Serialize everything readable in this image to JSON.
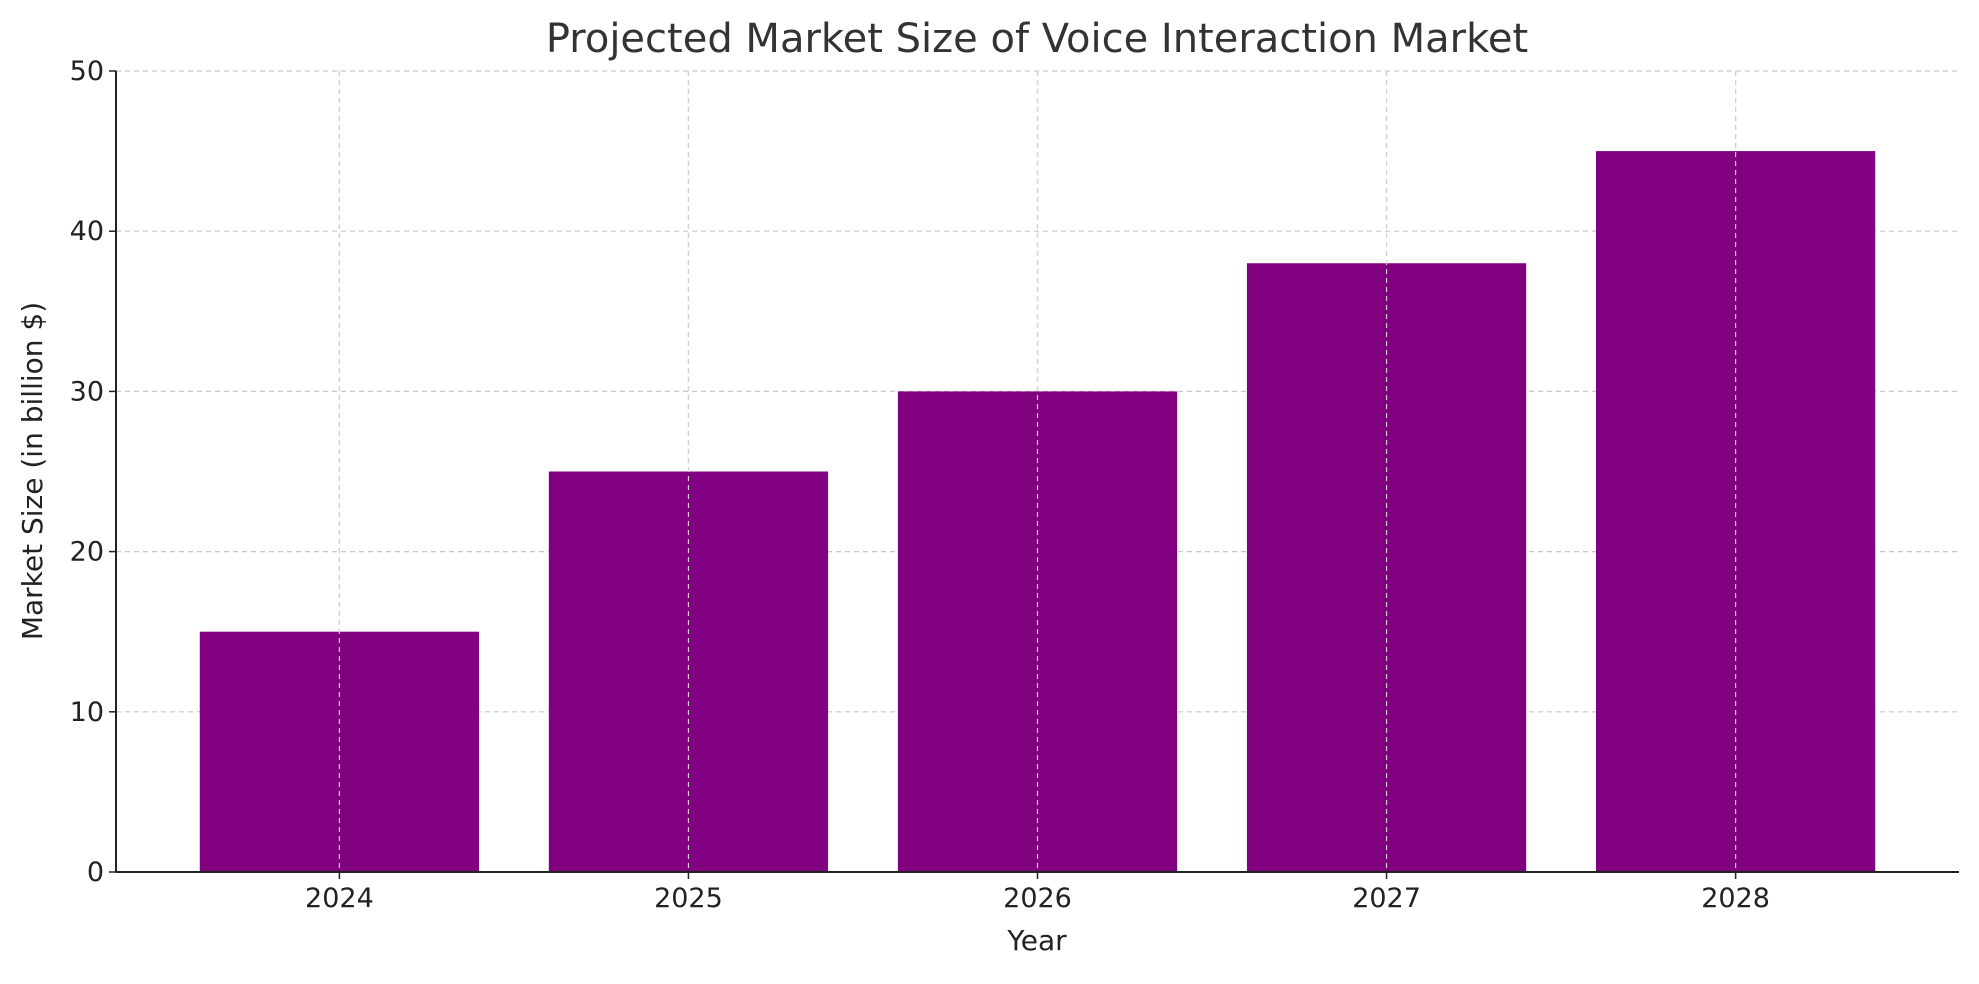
{
  "chart_data": {
    "type": "bar",
    "title": "Projected Market Size of Voice Interaction Market",
    "xlabel": "Year",
    "ylabel": "Market Size (in billion $)",
    "categories": [
      "2024",
      "2025",
      "2026",
      "2027",
      "2028"
    ],
    "values": [
      15,
      25,
      30,
      38,
      45
    ],
    "ylim": [
      0,
      50
    ],
    "yticks": [
      "0",
      "10",
      "20",
      "30",
      "40",
      "50"
    ],
    "grid": true,
    "bar_color": "#800080"
  }
}
